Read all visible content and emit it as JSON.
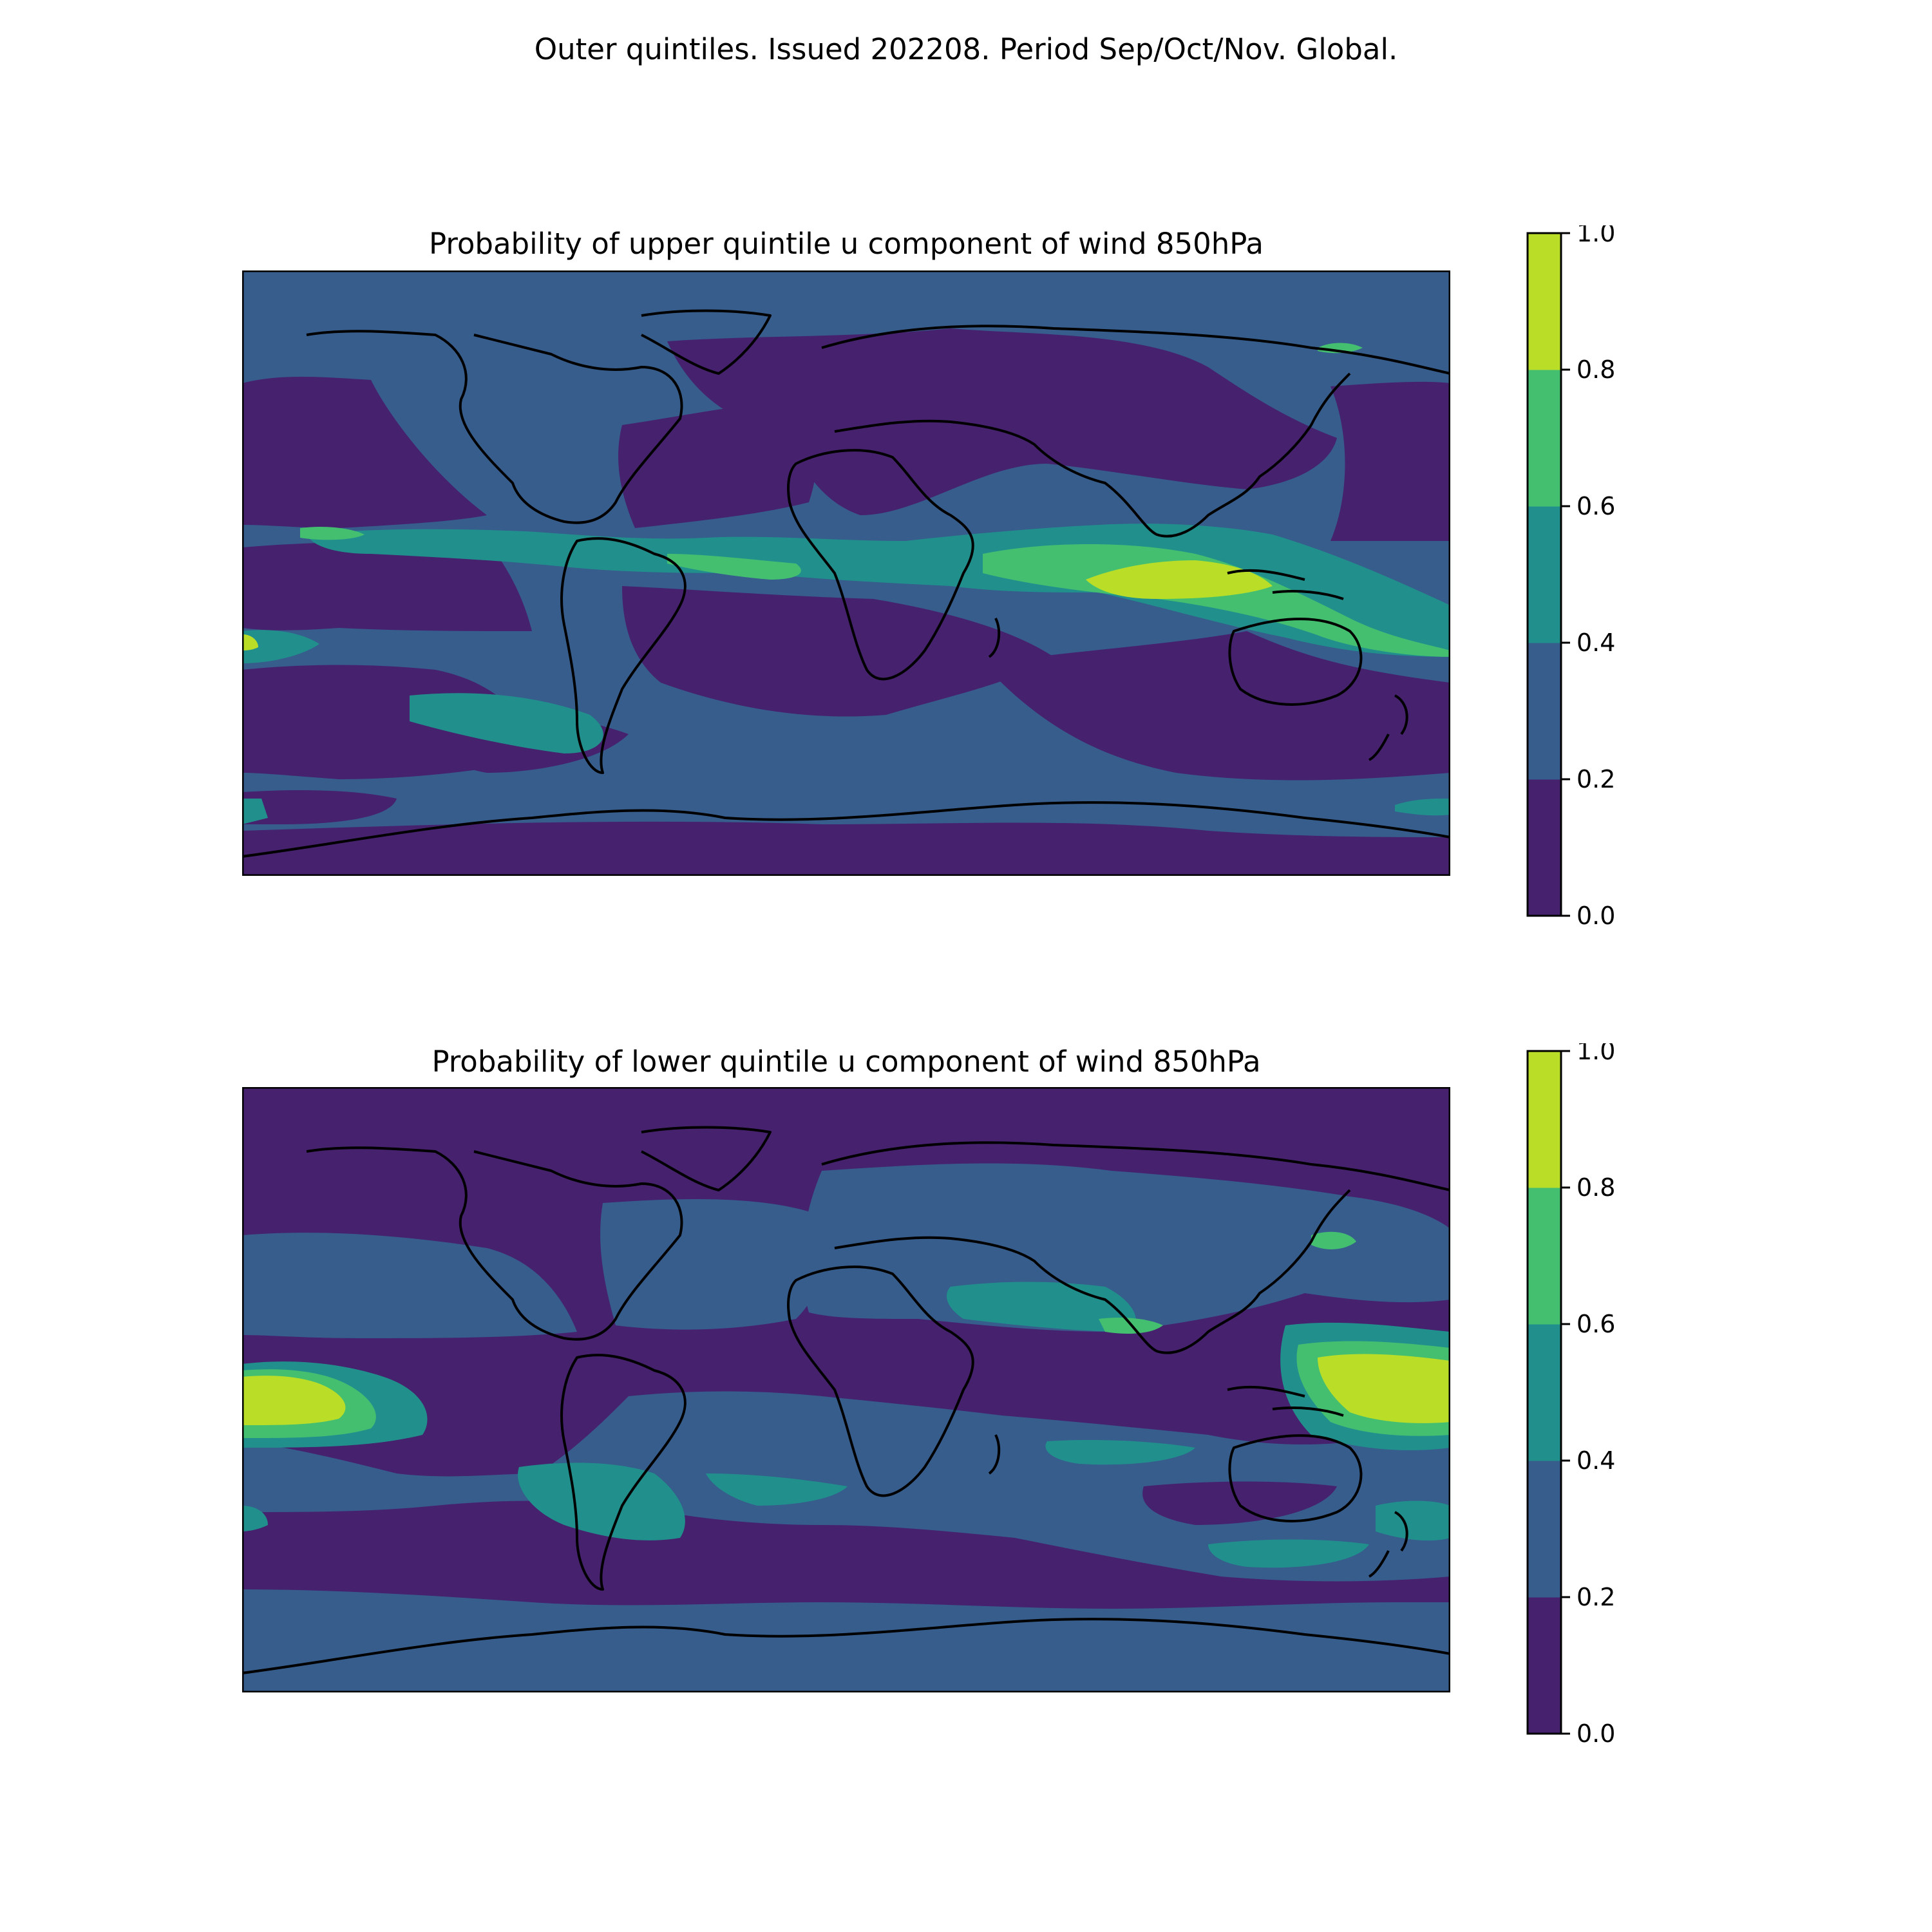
{
  "figure": {
    "suptitle": "Outer quintiles. Issued 202208. Period Sep/Oct/Nov. Global."
  },
  "colormap": {
    "levels": [
      0.0,
      0.2,
      0.4,
      0.6,
      0.8,
      1.0
    ],
    "colors": [
      "#46216e",
      "#365d8c",
      "#21908c",
      "#44bf70",
      "#bade28"
    ]
  },
  "panels": [
    {
      "title": "Probability of upper quintile u component of wind 850hPa",
      "colorbar_ticks": [
        "0.0",
        "0.2",
        "0.4",
        "0.6",
        "0.8",
        "1.0"
      ]
    },
    {
      "title": "Probability of lower quintile u component of wind 850hPa",
      "colorbar_ticks": [
        "0.0",
        "0.2",
        "0.4",
        "0.6",
        "0.8",
        "1.0"
      ]
    }
  ]
}
